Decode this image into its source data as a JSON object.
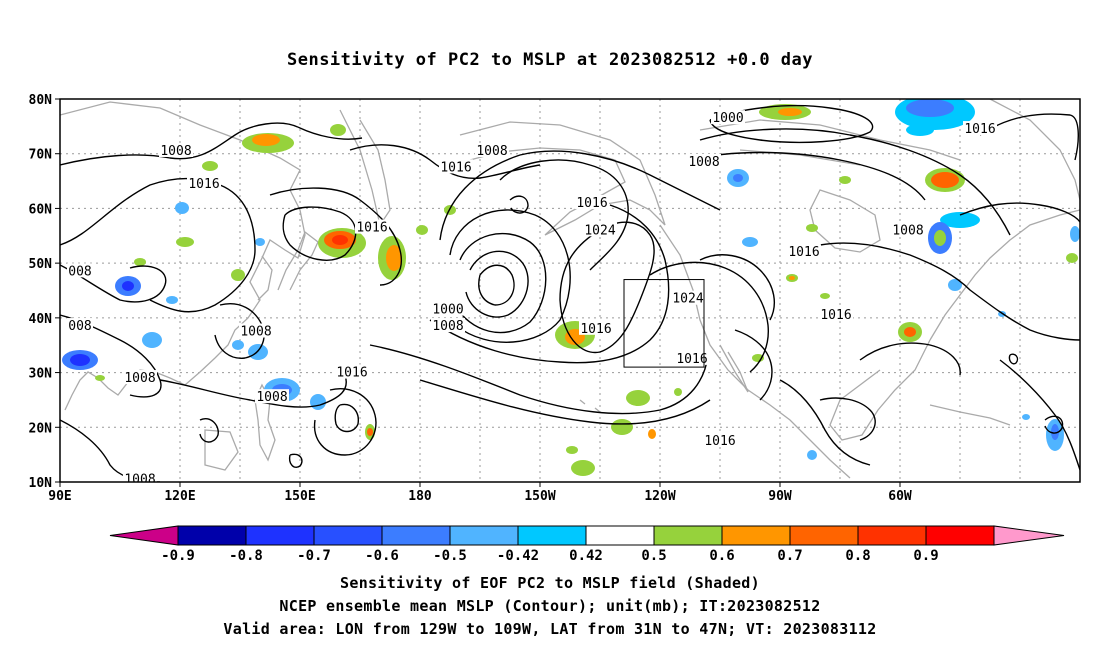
{
  "title": "Sensitivity of PC2 to MSLP at 2023082512 +0.0 day",
  "axes": {
    "x_ticks": [
      "90E",
      "120E",
      "150E",
      "180",
      "150W",
      "120W",
      "90W",
      "60W"
    ],
    "y_ticks": [
      "80N",
      "70N",
      "60N",
      "50N",
      "40N",
      "30N",
      "20N",
      "10N"
    ]
  },
  "contour_labels": [
    {
      "text": "1008",
      "lon": 119,
      "lat": 70.5
    },
    {
      "text": "1016",
      "lon": 126,
      "lat": 64.5
    },
    {
      "text": "008",
      "lon": 95,
      "lat": 48.5
    },
    {
      "text": "008",
      "lon": 95,
      "lat": 38.5
    },
    {
      "text": "1008",
      "lon": 139,
      "lat": 37.5
    },
    {
      "text": "1008",
      "lon": 110,
      "lat": 29
    },
    {
      "text": "1008",
      "lon": 143,
      "lat": 25.5
    },
    {
      "text": "1008",
      "lon": 110,
      "lat": 10.5
    },
    {
      "text": "1016",
      "lon": 168,
      "lat": 56.5
    },
    {
      "text": "1016",
      "lon": 189,
      "lat": 67.5
    },
    {
      "text": "1008",
      "lon": 198,
      "lat": 70.5
    },
    {
      "text": "1000",
      "lon": 187,
      "lat": 41.5
    },
    {
      "text": "1008",
      "lon": 187,
      "lat": 38.5
    },
    {
      "text": "1016",
      "lon": 223,
      "lat": 61
    },
    {
      "text": "1024",
      "lon": 225,
      "lat": 56
    },
    {
      "text": "1016",
      "lon": 163,
      "lat": 30
    },
    {
      "text": "1016",
      "lon": 224,
      "lat": 38
    },
    {
      "text": "1024",
      "lon": 247,
      "lat": 43.5
    },
    {
      "text": "1016",
      "lon": 248,
      "lat": 32.5
    },
    {
      "text": "1016",
      "lon": 255,
      "lat": 17.5
    },
    {
      "text": "1000",
      "lon": 257,
      "lat": 76.5
    },
    {
      "text": "1008",
      "lon": 251,
      "lat": 68.5
    },
    {
      "text": "1016",
      "lon": 284,
      "lat": 40.5
    },
    {
      "text": "1016",
      "lon": 276,
      "lat": 52
    },
    {
      "text": "1008",
      "lon": 302,
      "lat": 56
    },
    {
      "text": "1016",
      "lon": 320,
      "lat": 74.5
    }
  ],
  "valid_box": {
    "lon_min": 231,
    "lon_max": 251,
    "lat_min": 31,
    "lat_max": 47
  },
  "colorbar": {
    "labels": [
      "-0.9",
      "-0.8",
      "-0.7",
      "-0.6",
      "-0.5",
      "-0.42",
      "0.42",
      "0.5",
      "0.6",
      "0.7",
      "0.8",
      "0.9"
    ],
    "colors": [
      "#0000aa",
      "#1e32ff",
      "#2850ff",
      "#3c7dff",
      "#50b4ff",
      "#00c8ff",
      "#ffffff",
      "#96d23c",
      "#ff9600",
      "#ff6400",
      "#ff3200",
      "#ff0000"
    ],
    "low_end_color": "#cc0088",
    "high_end_color": "#ff99cc"
  },
  "captions": [
    "Sensitivity of EOF PC2 to MSLP field (Shaded)",
    "NCEP ensemble mean MSLP (Contour); unit(mb); IT:2023082512",
    "Valid area: LON from 129W to 109W, LAT from 31N to 47N; VT: 2023083112"
  ]
}
